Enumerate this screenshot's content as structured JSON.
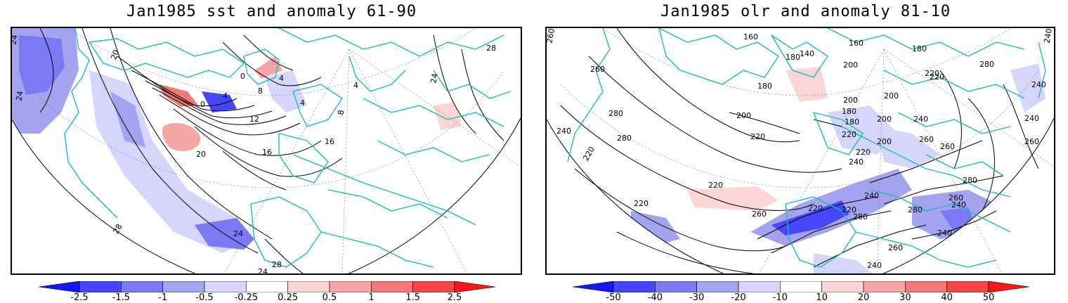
{
  "left_panel": {
    "title": "Jan1985 sst and anomaly 61-90",
    "contour_labels": [
      "24",
      "20",
      "24",
      "0",
      "4",
      "8",
      "12",
      "16",
      "20",
      "24",
      "28",
      "28",
      "4",
      "0",
      "4",
      "8",
      "16",
      "24",
      "28",
      "4",
      "24"
    ],
    "colorbar": {
      "ticks": [
        "-2.5",
        "-1.5",
        "-1",
        "-0.5",
        "-0.25",
        "0.25",
        "0.5",
        "1",
        "1.5",
        "2.5"
      ],
      "colors": [
        "#1515ff",
        "#4646ff",
        "#7a7af5",
        "#a3a3f0",
        "#d6d6fa",
        "#ffffff",
        "#fcd6d6",
        "#f7a6a6",
        "#f57878",
        "#f54545",
        "#ff1717"
      ]
    }
  },
  "right_panel": {
    "title": "Jan1985 olr and anomaly 81-10",
    "contour_labels": [
      "260",
      "160",
      "180",
      "140",
      "160",
      "180",
      "220",
      "240",
      "260",
      "280",
      "180",
      "200",
      "240",
      "220",
      "200",
      "280",
      "180",
      "200",
      "280",
      "240",
      "220",
      "220",
      "200",
      "180",
      "200",
      "240",
      "260",
      "240",
      "260",
      "220",
      "200",
      "220",
      "260",
      "240",
      "280",
      "220",
      "240",
      "260",
      "220",
      "280",
      "240",
      "220",
      "260",
      "220",
      "240",
      "240",
      "260",
      "280"
    ],
    "colorbar": {
      "ticks": [
        "-50",
        "-40",
        "-30",
        "-20",
        "-10",
        "10",
        "20",
        "30",
        "40",
        "50"
      ],
      "colors": [
        "#1515ff",
        "#4646ff",
        "#7a7af5",
        "#a3a3f0",
        "#d6d6fa",
        "#ffffff",
        "#fcd6d6",
        "#f7a6a6",
        "#f57878",
        "#f54545",
        "#ff1717"
      ]
    }
  }
}
